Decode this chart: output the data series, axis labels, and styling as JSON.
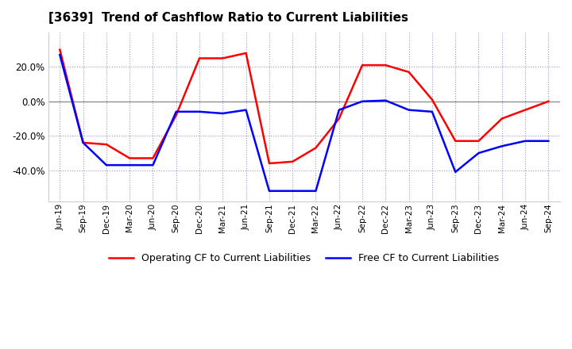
{
  "title": "[3639]  Trend of Cashflow Ratio to Current Liabilities",
  "x_labels": [
    "Jun-19",
    "Sep-19",
    "Dec-19",
    "Mar-20",
    "Jun-20",
    "Sep-20",
    "Dec-20",
    "Mar-21",
    "Jun-21",
    "Sep-21",
    "Dec-21",
    "Mar-22",
    "Jun-22",
    "Sep-22",
    "Dec-22",
    "Mar-23",
    "Jun-23",
    "Sep-23",
    "Dec-23",
    "Mar-24",
    "Jun-24",
    "Sep-24"
  ],
  "operating_cf": [
    30.0,
    -24.0,
    -25.0,
    -33.0,
    -33.0,
    -8.0,
    25.0,
    25.0,
    28.0,
    -36.0,
    -35.0,
    -27.0,
    -10.0,
    21.0,
    21.0,
    17.0,
    1.0,
    -23.0,
    -23.0,
    -10.0,
    -5.0,
    0.0
  ],
  "free_cf": [
    27.0,
    -24.0,
    -37.0,
    -37.0,
    -37.0,
    -6.0,
    -6.0,
    -7.0,
    -5.0,
    -52.0,
    -52.0,
    -52.0,
    -5.0,
    0.0,
    0.5,
    -5.0,
    -6.0,
    -41.0,
    -30.0,
    -26.0,
    -23.0,
    -23.0
  ],
  "ylim_min": -58,
  "ylim_max": 40,
  "yticks": [
    -40.0,
    -20.0,
    0.0,
    20.0
  ],
  "operating_color": "#FF0000",
  "free_color": "#0000FF",
  "grid_color": "#9999BB",
  "legend_op": "Operating CF to Current Liabilities",
  "legend_free": "Free CF to Current Liabilities"
}
